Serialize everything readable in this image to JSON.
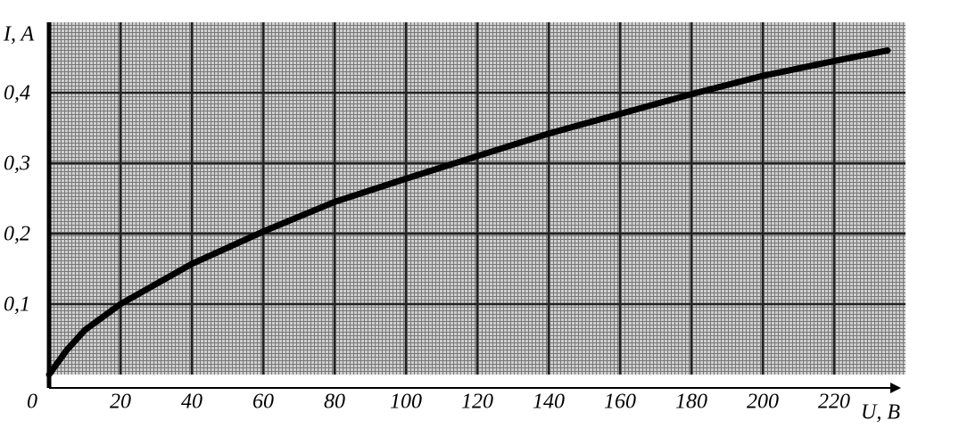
{
  "chart_data": {
    "type": "line",
    "x_label": "U, B",
    "y_label": "I, A",
    "x": [
      0,
      5,
      10,
      20,
      40,
      60,
      80,
      100,
      120,
      140,
      160,
      180,
      200,
      220,
      235
    ],
    "series": [
      {
        "color": "#000000",
        "values": [
          0,
          0.035,
          0.063,
          0.1,
          0.157,
          0.203,
          0.245,
          0.278,
          0.31,
          0.342,
          0.37,
          0.398,
          0.424,
          0.445,
          0.46
        ]
      }
    ],
    "xlim": [
      0,
      240
    ],
    "ylim": [
      0,
      0.5
    ],
    "xticks": [
      0,
      20,
      40,
      60,
      80,
      100,
      120,
      140,
      160,
      180,
      200,
      220
    ],
    "yticks": [
      {
        "value": 0.1,
        "label": "0,1"
      },
      {
        "value": 0.2,
        "label": "0,2"
      },
      {
        "value": 0.3,
        "label": "0,3"
      },
      {
        "value": 0.4,
        "label": "0,4"
      }
    ],
    "grid": true
  }
}
